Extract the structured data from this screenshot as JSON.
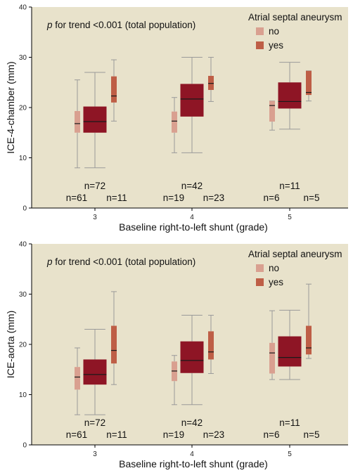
{
  "legend": {
    "title": "Atrial septal aneurysm",
    "items": [
      {
        "label": "no",
        "color": "#D9A090"
      },
      {
        "label": "yes",
        "color": "#BE5E46"
      }
    ],
    "total_color": "#8E1525"
  },
  "colors": {
    "background": "#E8E2CB",
    "whisker": "#9A9A9A",
    "median": "#1A1A1A"
  },
  "chart_data": [
    {
      "type": "box",
      "annotation_italic": "p",
      "annotation_rest": " for trend <0.001 (total population)",
      "xlabel": "Baseline right-to-left shunt (grade)",
      "ylabel": "ICE-4-chamber (mm)",
      "ylim": [
        0,
        40
      ],
      "yticks": [
        "0",
        "10",
        "20",
        "30",
        "40"
      ],
      "legend_position": "top-right",
      "grid": false,
      "groups": [
        {
          "category": "3",
          "n_total": "n=72",
          "n_no": "n=61",
          "n_yes": "n=11",
          "no": {
            "min": 8,
            "q1": 15,
            "median": 16.8,
            "q3": 19.3,
            "max": 25.5
          },
          "total": {
            "min": 8,
            "q1": 15,
            "median": 17.2,
            "q3": 20.2,
            "max": 27
          },
          "yes": {
            "min": 17.3,
            "q1": 21,
            "median": 22.3,
            "q3": 26.2,
            "max": 29.5
          }
        },
        {
          "category": "4",
          "n_total": "n=42",
          "n_no": "n=19",
          "n_yes": "n=23",
          "no": {
            "min": 11,
            "q1": 15,
            "median": 17.3,
            "q3": 19.2,
            "max": 22
          },
          "total": {
            "min": 11,
            "q1": 18.2,
            "median": 21.7,
            "q3": 24.7,
            "max": 30
          },
          "yes": {
            "min": 21.2,
            "q1": 23.5,
            "median": 24.8,
            "q3": 26.3,
            "max": 30
          }
        },
        {
          "category": "5",
          "n_total": "n=11",
          "n_no": "n=6",
          "n_yes": "n=5",
          "no": {
            "min": 15.5,
            "q1": 17.2,
            "median": 20.4,
            "q3": 21.3,
            "max": 21.3
          },
          "total": {
            "min": 15.7,
            "q1": 19.8,
            "median": 21.2,
            "q3": 25,
            "max": 29
          },
          "yes": {
            "min": 21.3,
            "q1": 22.5,
            "median": 23,
            "q3": 27.3,
            "max": 27.3
          }
        }
      ]
    },
    {
      "type": "box",
      "annotation_italic": "p",
      "annotation_rest": " for trend <0.001 (total population)",
      "xlabel": "Baseline right-to-left shunt (grade)",
      "ylabel": "ICE-aorta (mm)",
      "ylim": [
        0,
        40
      ],
      "yticks": [
        "0",
        "10",
        "20",
        "30",
        "40"
      ],
      "legend_position": "top-right",
      "grid": false,
      "groups": [
        {
          "category": "3",
          "n_total": "n=72",
          "n_no": "n=61",
          "n_yes": "n=11",
          "no": {
            "min": 6,
            "q1": 11,
            "median": 13.5,
            "q3": 15.5,
            "max": 19.3
          },
          "total": {
            "min": 6,
            "q1": 12,
            "median": 14,
            "q3": 17,
            "max": 23
          },
          "yes": {
            "min": 12,
            "q1": 16.2,
            "median": 18.8,
            "q3": 23.7,
            "max": 30.5
          }
        },
        {
          "category": "4",
          "n_total": "n=42",
          "n_no": "n=19",
          "n_yes": "n=23",
          "no": {
            "min": 8,
            "q1": 12.7,
            "median": 14.7,
            "q3": 16.6,
            "max": 17.8
          },
          "total": {
            "min": 8,
            "q1": 14.3,
            "median": 16.8,
            "q3": 20.6,
            "max": 25.8
          },
          "yes": {
            "min": 14.2,
            "q1": 17,
            "median": 18.5,
            "q3": 22.6,
            "max": 25.8
          }
        },
        {
          "category": "5",
          "n_total": "n=11",
          "n_no": "n=6",
          "n_yes": "n=5",
          "no": {
            "min": 13,
            "q1": 14.2,
            "median": 18.3,
            "q3": 20.3,
            "max": 26.7
          },
          "total": {
            "min": 13,
            "q1": 15.6,
            "median": 17.4,
            "q3": 21.6,
            "max": 26.8
          },
          "yes": {
            "min": 17.2,
            "q1": 18,
            "median": 19.3,
            "q3": 23.7,
            "max": 32
          }
        }
      ]
    }
  ]
}
